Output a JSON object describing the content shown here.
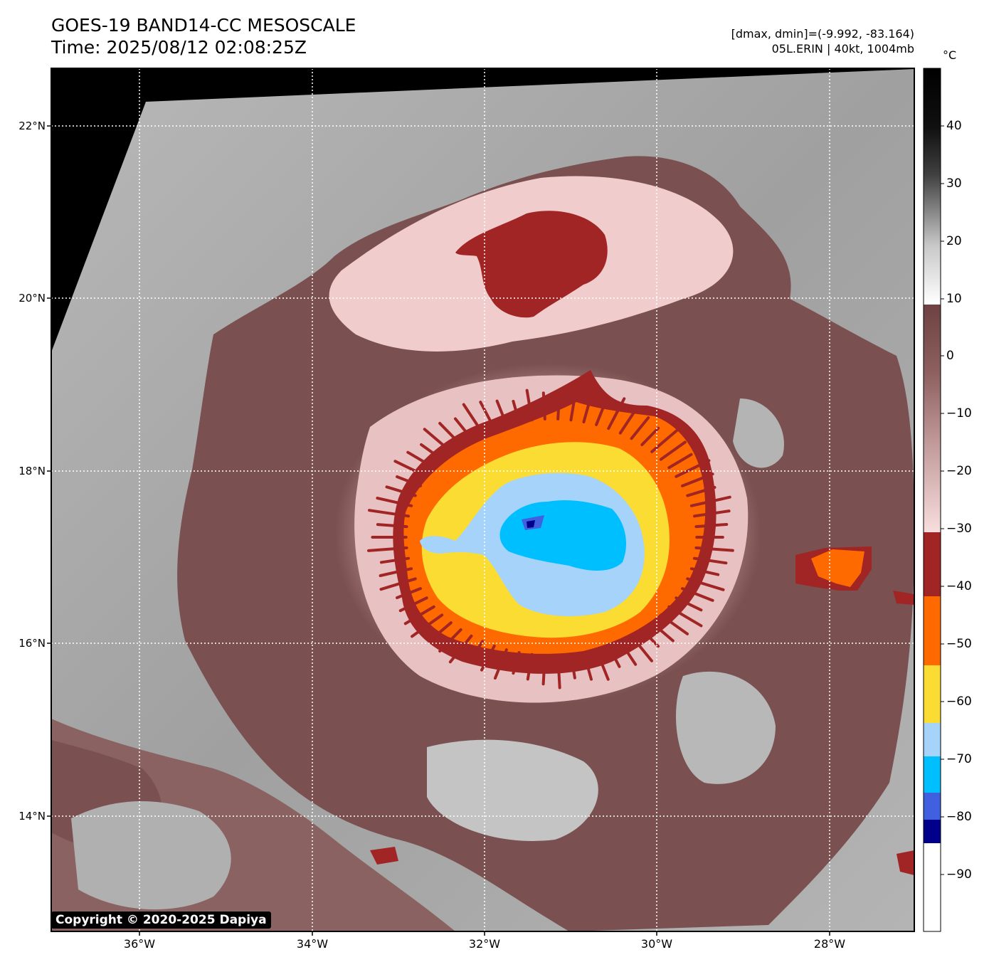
{
  "header": {
    "title_line1": "GOES-19 BAND14-CC MESOSCALE",
    "title_line2": "Time: 2025/08/12 02:08:25Z",
    "stats_line": "[dmax, dmin]=(-9.992, -83.164)",
    "storm_line": "05L.ERIN | 40kt, 1004mb"
  },
  "axes": {
    "lat_labels": [
      "22°N",
      "20°N",
      "18°N",
      "16°N",
      "14°N"
    ],
    "lon_labels": [
      "36°W",
      "34°W",
      "32°W",
      "30°W",
      "28°W"
    ]
  },
  "colorbar": {
    "unit": "°C",
    "ticks": [
      "40",
      "30",
      "20",
      "10",
      "0",
      "−10",
      "−20",
      "−30",
      "−40",
      "−50",
      "−60",
      "−70",
      "−80",
      "−90"
    ],
    "colors": {
      "dark_red": "#a12525",
      "orange": "#ff6a00",
      "yellow": "#fbdc32",
      "light_blue": "#a5d3fa",
      "cyan": "#00bfff",
      "royal_blue": "#4060e0",
      "navy": "#00008b",
      "pink_cloud": "#f2d0d0",
      "brown_cloud": "#7a5050",
      "gray_bg": "#a8a8a8"
    }
  },
  "copyright": "Copyright © 2020-2025 Dapiya"
}
